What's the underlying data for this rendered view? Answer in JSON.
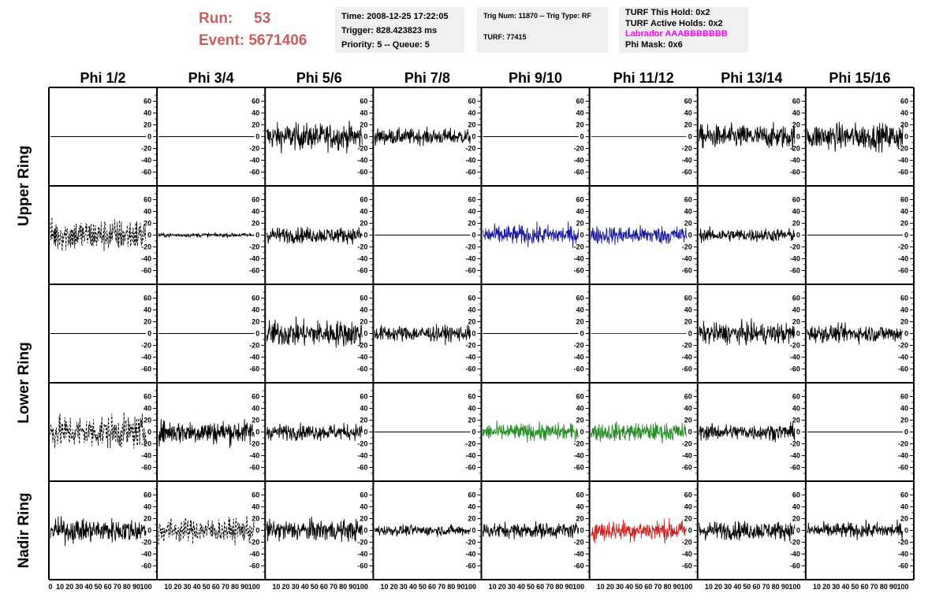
{
  "header": {
    "run_label": "Run:",
    "run_value": "53",
    "event_label": "Event:",
    "event_value": "5671406",
    "time": "Time: 2008-12-25 17:22:05",
    "trigger": "Trigger: 828.423823 ms",
    "priority": "Priority: 5 -- Queue: 5",
    "trig_num": "Trig Num: 11870 -- Trig Type: RF",
    "turf": "TURF: 77415",
    "turf_hold": "TURF This Hold: 0x2",
    "turf_active": "TURF Active Holds: 0x2",
    "labrador": "Labrador AAABBBBBBB",
    "phi_mask": "Phi Mask: 0x6"
  },
  "chart_data": {
    "type": "line",
    "columns": [
      "Phi 1/2",
      "Phi 3/4",
      "Phi 5/6",
      "Phi 7/8",
      "Phi 9/10",
      "Phi 11/12",
      "Phi 13/14",
      "Phi 15/16"
    ],
    "ring_labels": [
      "Upper Ring",
      "Lower Ring",
      "Nadir Ring"
    ],
    "xlim": [
      0,
      100
    ],
    "ylim": [
      -70,
      70
    ],
    "y_ticks": [
      -60,
      -40,
      -20,
      0,
      20,
      40,
      60
    ],
    "x_ticks": [
      0,
      10,
      20,
      30,
      40,
      50,
      60,
      70,
      80,
      90,
      100
    ],
    "rows": [
      [
        {
          "amp": 0,
          "color": "#000000",
          "dash": false
        },
        {
          "amp": 0,
          "color": "#000000",
          "dash": false
        },
        {
          "amp": 20,
          "color": "#000000",
          "dash": false
        },
        {
          "amp": 12,
          "color": "#000000",
          "dash": false
        },
        {
          "amp": 0,
          "color": "#000000",
          "dash": false
        },
        {
          "amp": 0,
          "color": "#cc0000",
          "dash": false
        },
        {
          "amp": 18,
          "color": "#000000",
          "dash": false
        },
        {
          "amp": 20,
          "color": "#000000",
          "dash": false
        }
      ],
      [
        {
          "amp": 25,
          "color": "#000000",
          "dash": true
        },
        {
          "amp": 3,
          "color": "#000000",
          "dash": false
        },
        {
          "amp": 12,
          "color": "#000000",
          "dash": false
        },
        {
          "amp": 0,
          "color": "#000000",
          "dash": false
        },
        {
          "amp": 15,
          "color": "#1a1aa0",
          "dash": false
        },
        {
          "amp": 14,
          "color": "#1a1aa0",
          "dash": false
        },
        {
          "amp": 10,
          "color": "#000000",
          "dash": false
        },
        {
          "amp": 0,
          "color": "#000000",
          "dash": false
        }
      ],
      [
        {
          "amp": 0,
          "color": "#000000",
          "dash": false
        },
        {
          "amp": 0,
          "color": "#000000",
          "dash": false
        },
        {
          "amp": 20,
          "color": "#000000",
          "dash": false
        },
        {
          "amp": 12,
          "color": "#000000",
          "dash": false
        },
        {
          "amp": 0,
          "color": "#000000",
          "dash": false
        },
        {
          "amp": 0,
          "color": "#cc0000",
          "dash": false
        },
        {
          "amp": 16,
          "color": "#000000",
          "dash": false
        },
        {
          "amp": 13,
          "color": "#000000",
          "dash": false
        }
      ],
      [
        {
          "amp": 25,
          "color": "#000000",
          "dash": true
        },
        {
          "amp": 18,
          "color": "#000000",
          "dash": false
        },
        {
          "amp": 12,
          "color": "#000000",
          "dash": false
        },
        {
          "amp": 0,
          "color": "#000000",
          "dash": false
        },
        {
          "amp": 13,
          "color": "#228b22",
          "dash": false
        },
        {
          "amp": 14,
          "color": "#228b22",
          "dash": false
        },
        {
          "amp": 12,
          "color": "#000000",
          "dash": false
        },
        {
          "amp": 0,
          "color": "#000000",
          "dash": false
        }
      ],
      [
        {
          "amp": 18,
          "color": "#000000",
          "dash": false
        },
        {
          "amp": 18,
          "color": "#000000",
          "dash": true
        },
        {
          "amp": 16,
          "color": "#000000",
          "dash": false
        },
        {
          "amp": 8,
          "color": "#000000",
          "dash": false
        },
        {
          "amp": 12,
          "color": "#000000",
          "dash": false
        },
        {
          "amp": 16,
          "color": "#cc2222",
          "dash": false
        },
        {
          "amp": 14,
          "color": "#000000",
          "dash": false
        },
        {
          "amp": 12,
          "color": "#000000",
          "dash": false
        }
      ]
    ]
  }
}
